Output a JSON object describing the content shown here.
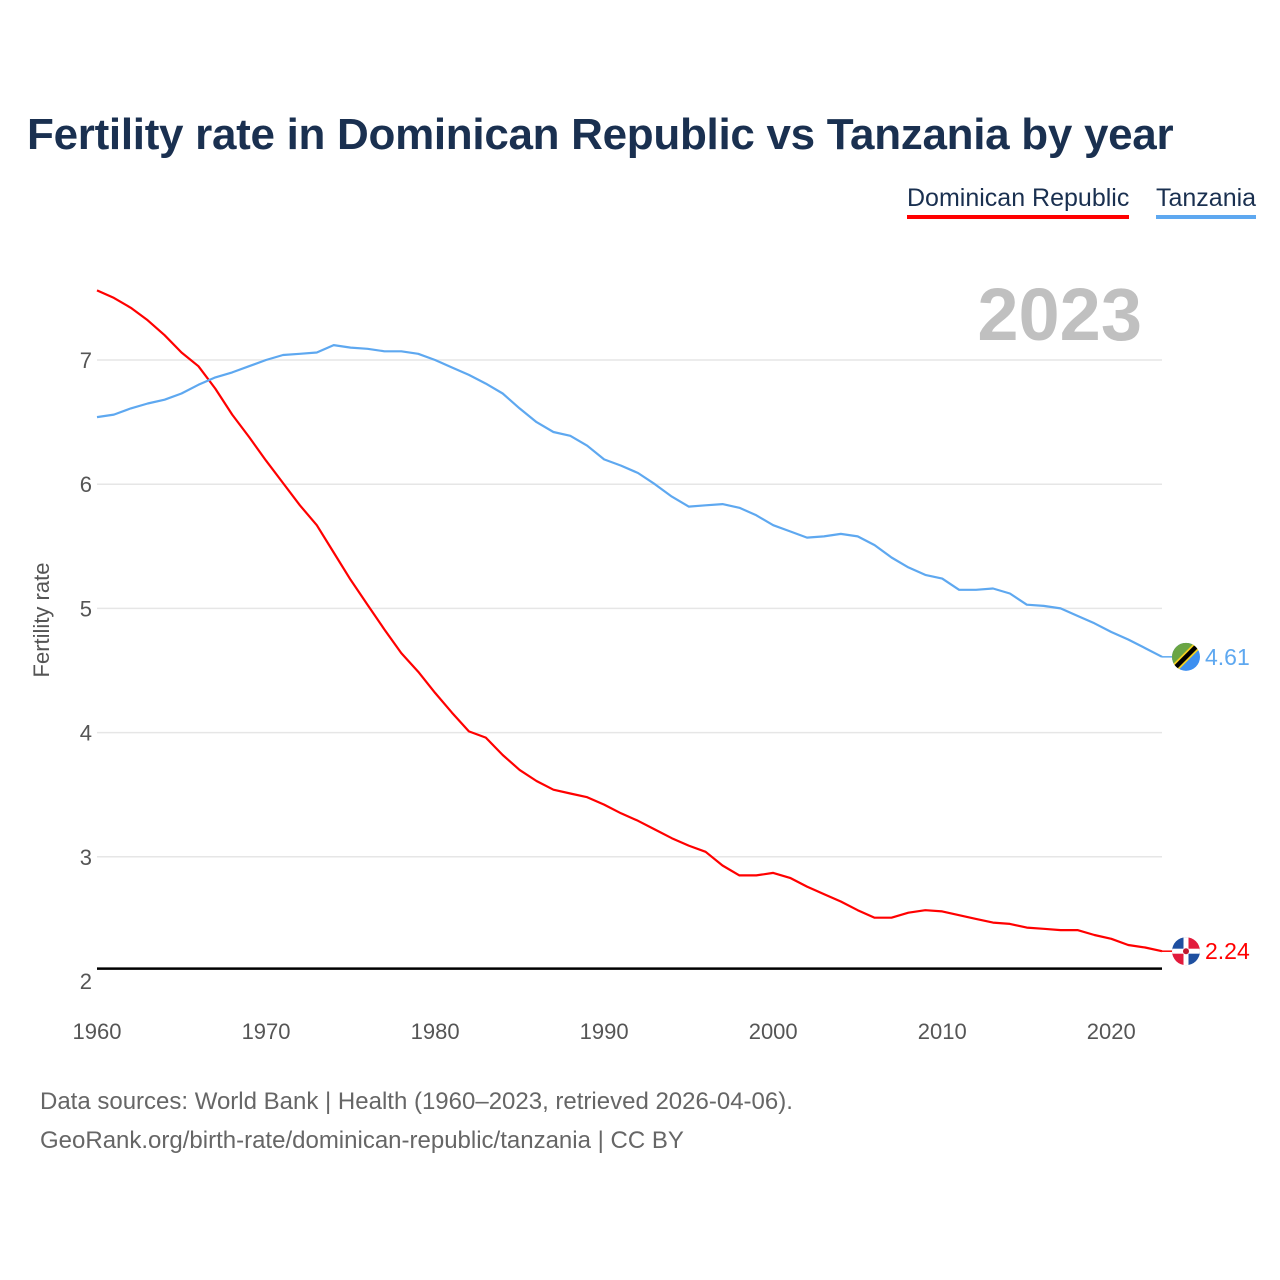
{
  "title": "Fertility rate in Dominican Republic vs Tanzania by year",
  "year_label": "2023",
  "footer": {
    "line1": "Data sources: World Bank | Health (1960–2023, retrieved 2026-04-06).",
    "line2": "GeoRank.org/birth-rate/dominican-republic/tanzania | CC BY"
  },
  "chart_data": {
    "type": "line",
    "title": "Fertility rate in Dominican Republic vs Tanzania by year",
    "xlabel": "",
    "ylabel": "Fertility rate",
    "xlim": [
      1960,
      2023
    ],
    "ylim": [
      2,
      7.6
    ],
    "x_ticks": [
      "1960",
      "1970",
      "1980",
      "1990",
      "2000",
      "2010",
      "2020"
    ],
    "y_ticks": [
      "2",
      "3",
      "4",
      "5",
      "6",
      "7"
    ],
    "grid": true,
    "legend_position": "top-right",
    "reference_line": 2.1,
    "x": [
      1960,
      1961,
      1962,
      1963,
      1964,
      1965,
      1966,
      1967,
      1968,
      1969,
      1970,
      1971,
      1972,
      1973,
      1974,
      1975,
      1976,
      1977,
      1978,
      1979,
      1980,
      1981,
      1982,
      1983,
      1984,
      1985,
      1986,
      1987,
      1988,
      1989,
      1990,
      1991,
      1992,
      1993,
      1994,
      1995,
      1996,
      1997,
      1998,
      1999,
      2000,
      2001,
      2002,
      2003,
      2004,
      2005,
      2006,
      2007,
      2008,
      2009,
      2010,
      2011,
      2012,
      2013,
      2014,
      2015,
      2016,
      2017,
      2018,
      2019,
      2020,
      2021,
      2022,
      2023
    ],
    "series": [
      {
        "name": "Dominican Republic",
        "color": "#ff0000",
        "end_label": "2.24",
        "values": [
          7.56,
          7.5,
          7.42,
          7.32,
          7.2,
          7.06,
          6.95,
          6.77,
          6.56,
          6.38,
          6.19,
          6.01,
          5.83,
          5.67,
          5.45,
          5.23,
          5.03,
          4.83,
          4.64,
          4.49,
          4.32,
          4.16,
          4.01,
          3.96,
          3.82,
          3.7,
          3.61,
          3.54,
          3.51,
          3.48,
          3.42,
          3.35,
          3.29,
          3.22,
          3.15,
          3.09,
          3.04,
          2.93,
          2.85,
          2.85,
          2.87,
          2.83,
          2.76,
          2.7,
          2.64,
          2.57,
          2.51,
          2.51,
          2.55,
          2.57,
          2.56,
          2.53,
          2.5,
          2.47,
          2.46,
          2.43,
          2.42,
          2.41,
          2.41,
          2.37,
          2.34,
          2.29,
          2.27,
          2.24
        ]
      },
      {
        "name": "Tanzania",
        "color": "#5ea8f0",
        "end_label": "4.61",
        "values": [
          6.54,
          6.56,
          6.61,
          6.65,
          6.68,
          6.73,
          6.8,
          6.86,
          6.9,
          6.95,
          7.0,
          7.04,
          7.05,
          7.06,
          7.12,
          7.1,
          7.09,
          7.07,
          7.07,
          7.05,
          7.0,
          6.94,
          6.88,
          6.81,
          6.73,
          6.61,
          6.5,
          6.42,
          6.39,
          6.31,
          6.2,
          6.15,
          6.09,
          6.0,
          5.9,
          5.82,
          5.83,
          5.84,
          5.81,
          5.75,
          5.67,
          5.62,
          5.57,
          5.58,
          5.6,
          5.58,
          5.51,
          5.41,
          5.33,
          5.27,
          5.24,
          5.15,
          5.15,
          5.16,
          5.12,
          5.03,
          5.02,
          5.0,
          4.94,
          4.88,
          4.81,
          4.75,
          4.68,
          4.61
        ]
      }
    ]
  }
}
